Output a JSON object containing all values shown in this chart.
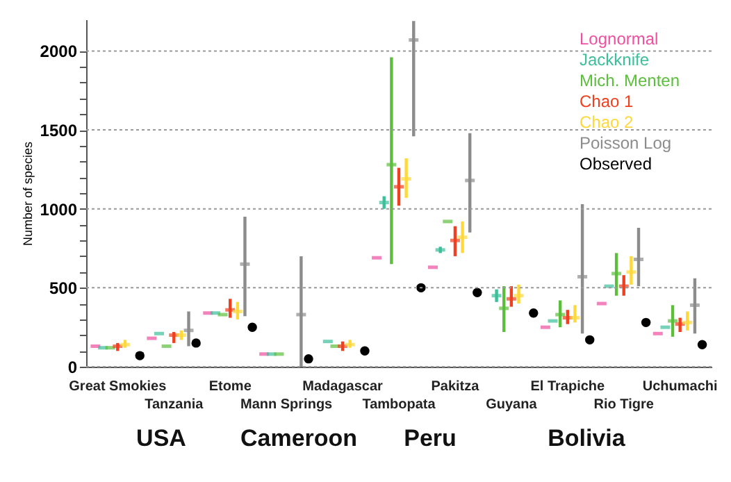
{
  "chart_data": {
    "type": "scatter",
    "ylabel": "Number of species",
    "categories": [
      "Great Smokies",
      "Tanzania",
      "Etome",
      "Mann Springs",
      "Madagascar",
      "Tambopata",
      "Pakitza",
      "Guyana",
      "El Trapiche",
      "Rio Tigre",
      "Uchumachi"
    ],
    "series": [
      {
        "name": "Lognormal",
        "color": "#ee4fa0",
        "values": [
          130,
          180,
          340,
          80,
          null,
          690,
          630,
          null,
          250,
          400,
          210
        ]
      },
      {
        "name": "Jackknife",
        "color": "#3cbf9a",
        "values": [
          120,
          210,
          340,
          80,
          160,
          1040,
          740,
          450,
          290,
          510,
          250
        ],
        "errors": [
          null,
          null,
          null,
          null,
          null,
          [
            1000,
            1080
          ],
          [
            720,
            760
          ],
          [
            410,
            490
          ],
          null,
          null,
          null
        ]
      },
      {
        "name": "Mich. Menten",
        "color": "#5cbf3c",
        "values": [
          120,
          130,
          330,
          80,
          130,
          1280,
          920,
          370,
          330,
          590,
          290
        ],
        "errors": [
          null,
          null,
          null,
          null,
          null,
          [
            650,
            1960
          ],
          null,
          [
            220,
            510
          ],
          [
            250,
            420
          ],
          [
            450,
            720
          ],
          [
            190,
            390
          ]
        ]
      },
      {
        "name": "Chao 1",
        "color": "#f04020",
        "values": [
          130,
          200,
          360,
          null,
          130,
          1140,
          800,
          430,
          310,
          510,
          270
        ],
        "errors": [
          [
            100,
            150
          ],
          [
            150,
            220
          ],
          [
            310,
            430
          ],
          null,
          [
            100,
            160
          ],
          [
            1020,
            1260
          ],
          [
            700,
            890
          ],
          [
            380,
            510
          ],
          [
            270,
            360
          ],
          [
            450,
            580
          ],
          [
            220,
            310
          ]
        ]
      },
      {
        "name": "Chao 2",
        "color": "#ffd83a",
        "values": [
          140,
          200,
          350,
          null,
          140,
          1190,
          820,
          450,
          310,
          600,
          280
        ],
        "errors": [
          [
            120,
            170
          ],
          [
            170,
            230
          ],
          [
            300,
            410
          ],
          null,
          [
            120,
            170
          ],
          [
            1070,
            1320
          ],
          [
            720,
            920
          ],
          [
            400,
            520
          ],
          [
            280,
            390
          ],
          [
            520,
            700
          ],
          [
            230,
            350
          ]
        ]
      },
      {
        "name": "Poisson Log",
        "color": "#8c8c8c",
        "values": [
          null,
          230,
          650,
          330,
          null,
          2070,
          1180,
          null,
          570,
          680,
          390
        ],
        "errors": [
          null,
          [
            130,
            350
          ],
          [
            320,
            950
          ],
          [
            0,
            700
          ],
          null,
          [
            1460,
            2190
          ],
          [
            850,
            1480
          ],
          null,
          [
            210,
            1030
          ],
          [
            510,
            880
          ],
          [
            210,
            560
          ]
        ]
      },
      {
        "name": "Observed",
        "color": "#000000",
        "marker": "circle",
        "values": [
          70,
          150,
          250,
          50,
          100,
          500,
          470,
          340,
          170,
          280,
          140
        ]
      }
    ],
    "ylim": [
      0,
      2200
    ],
    "yticks": [
      0,
      {
        "value": 100,
        "label": null
      },
      {
        "value": 200,
        "label": null
      },
      {
        "value": 300,
        "label": null
      },
      {
        "value": 400,
        "label": null
      },
      500,
      {
        "value": 600,
        "label": null
      },
      {
        "value": 700,
        "label": null
      },
      {
        "value": 800,
        "label": null
      },
      {
        "value": 900,
        "label": null
      },
      1000,
      {
        "value": 1100,
        "label": null
      },
      {
        "value": 1200,
        "label": null
      },
      {
        "value": 1300,
        "label": null
      },
      {
        "value": 1400,
        "label": null
      },
      1500,
      {
        "value": 1600,
        "label": null
      },
      {
        "value": 1700,
        "label": null
      },
      {
        "value": 1800,
        "label": null
      },
      {
        "value": 1900,
        "label": null
      },
      2000
    ],
    "grid": "y",
    "annotations": [
      "USA",
      "Cameroon",
      "Peru",
      "Bolivia"
    ]
  }
}
